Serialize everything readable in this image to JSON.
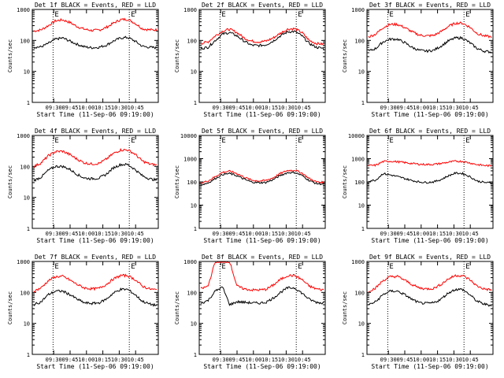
{
  "chart_data": [
    {
      "type": "line",
      "title": "Det 1f BLACK = Events, RED = LLD",
      "xlabel": "Start Time (11-Sep-06 09:19:00)",
      "ylabel": "Counts/sec",
      "ylim": [
        1,
        1000
      ],
      "yscale": "log",
      "xticks": [
        "09:30",
        "09:45",
        "10:00",
        "10:15",
        "10:30",
        "10:45"
      ],
      "yticks": [
        "1",
        "10",
        "100",
        "1000"
      ],
      "markers": [
        "E",
        "E"
      ],
      "series": [
        {
          "color": "#ff0000",
          "values": [
            200,
            220,
            300,
            430,
            460,
            380,
            280,
            230,
            210,
            215,
            260,
            360,
            470,
            480,
            360,
            240,
            220,
            220
          ]
        },
        {
          "color": "#000000",
          "values": [
            60,
            62,
            80,
            110,
            120,
            95,
            75,
            62,
            58,
            60,
            70,
            95,
            120,
            125,
            95,
            65,
            60,
            58
          ]
        }
      ]
    },
    {
      "type": "line",
      "title": "Det 2f BLACK = Events, RED = LLD",
      "xlabel": "Start Time (11-Sep-06 09:19:00)",
      "ylabel": "Counts/sec",
      "ylim": [
        1,
        1000
      ],
      "yscale": "log",
      "xticks": [
        "09:30",
        "09:45",
        "10:00",
        "10:15",
        "10:30",
        "10:45"
      ],
      "yticks": [
        "1",
        "10",
        "100",
        "1000"
      ],
      "markers": [
        "E",
        "E"
      ],
      "series": [
        {
          "color": "#ff0000",
          "values": [
            80,
            90,
            140,
            200,
            230,
            180,
            120,
            95,
            90,
            95,
            120,
            170,
            230,
            240,
            180,
            100,
            80,
            75
          ]
        },
        {
          "color": "#000000",
          "values": [
            55,
            60,
            100,
            160,
            180,
            140,
            95,
            70,
            68,
            72,
            95,
            140,
            190,
            195,
            140,
            80,
            60,
            55
          ]
        }
      ]
    },
    {
      "type": "line",
      "title": "Det 3f BLACK = Events, RED = LLD",
      "xlabel": "Start Time (11-Sep-06 09:19:00)",
      "ylabel": "Counts/sec",
      "ylim": [
        1,
        1000
      ],
      "yscale": "log",
      "xticks": [
        "09:30",
        "09:45",
        "10:00",
        "10:15",
        "10:30",
        "10:45"
      ],
      "yticks": [
        "1",
        "10",
        "100",
        "1000"
      ],
      "markers": [
        "E",
        "E"
      ],
      "series": [
        {
          "color": "#ff0000",
          "values": [
            130,
            160,
            260,
            330,
            330,
            260,
            190,
            150,
            140,
            145,
            190,
            280,
            360,
            360,
            270,
            170,
            140,
            130
          ]
        },
        {
          "color": "#000000",
          "values": [
            45,
            55,
            90,
            110,
            110,
            85,
            60,
            48,
            45,
            48,
            65,
            95,
            120,
            120,
            85,
            55,
            45,
            42
          ]
        }
      ]
    },
    {
      "type": "line",
      "title": "Det 4f BLACK = Events, RED = LLD",
      "xlabel": "Start Time (11-Sep-06 09:19:00)",
      "ylabel": "Counts/sec",
      "ylim": [
        1,
        1000
      ],
      "yscale": "log",
      "xticks": [
        "09:30",
        "09:45",
        "10:00",
        "10:15",
        "10:30",
        "10:45"
      ],
      "yticks": [
        "1",
        "10",
        "100",
        "1000"
      ],
      "markers": [
        "E",
        "E"
      ],
      "series": [
        {
          "color": "#ff0000",
          "values": [
            100,
            130,
            220,
            300,
            310,
            240,
            170,
            130,
            120,
            125,
            170,
            260,
            340,
            340,
            250,
            150,
            120,
            110
          ]
        },
        {
          "color": "#000000",
          "values": [
            35,
            45,
            75,
            100,
            100,
            80,
            55,
            42,
            40,
            42,
            55,
            90,
            115,
            115,
            80,
            50,
            40,
            36
          ]
        }
      ]
    },
    {
      "type": "line",
      "title": "Det 5f BLACK = Events, RED = LLD",
      "xlabel": "Start Time (11-Sep-06 09:19:00)",
      "ylabel": "Counts/sec",
      "ylim": [
        1,
        10000
      ],
      "yscale": "log",
      "xticks": [
        "09:30",
        "09:45",
        "10:00",
        "10:15",
        "10:30",
        "10:45"
      ],
      "yticks": [
        "1",
        "10",
        "100",
        "1000",
        "10000"
      ],
      "markers": [
        "E",
        "E"
      ],
      "series": [
        {
          "color": "#ff0000",
          "values": [
            90,
            110,
            170,
            260,
            290,
            230,
            160,
            120,
            110,
            115,
            150,
            230,
            310,
            320,
            240,
            140,
            100,
            95
          ]
        },
        {
          "color": "#000000",
          "values": [
            75,
            90,
            140,
            210,
            230,
            185,
            130,
            100,
            92,
            95,
            125,
            190,
            250,
            255,
            190,
            115,
            85,
            80
          ]
        }
      ]
    },
    {
      "type": "line",
      "title": "Det 6f BLACK = Events, RED = LLD",
      "xlabel": "Start Time (11-Sep-06 09:19:00)",
      "ylabel": "Counts/sec",
      "ylim": [
        1,
        10000
      ],
      "yscale": "log",
      "xticks": [
        "09:30",
        "09:45",
        "10:00",
        "10:15",
        "10:30",
        "10:45"
      ],
      "yticks": [
        "1",
        "10",
        "100",
        "1000",
        "10000"
      ],
      "markers": [
        "E",
        "E"
      ],
      "series": [
        {
          "color": "#ff0000",
          "values": [
            500,
            520,
            750,
            780,
            740,
            680,
            620,
            580,
            560,
            570,
            620,
            700,
            780,
            760,
            660,
            560,
            510,
            490
          ]
        },
        {
          "color": "#000000",
          "values": [
            110,
            120,
            230,
            200,
            170,
            140,
            115,
            100,
            95,
            100,
            125,
            180,
            240,
            230,
            170,
            110,
            95,
            90
          ]
        }
      ]
    },
    {
      "type": "line",
      "title": "Det 7f BLACK = Events, RED = LLD",
      "xlabel": "Start Time (11-Sep-06 09:19:00)",
      "ylabel": "Counts/sec",
      "ylim": [
        1,
        1000
      ],
      "yscale": "log",
      "xticks": [
        "09:30",
        "09:45",
        "10:00",
        "10:15",
        "10:30",
        "10:45"
      ],
      "yticks": [
        "1",
        "10",
        "100",
        "1000"
      ],
      "markers": [
        "E",
        "E"
      ],
      "series": [
        {
          "color": "#ff0000",
          "values": [
            110,
            140,
            240,
            320,
            330,
            250,
            180,
            140,
            130,
            135,
            180,
            270,
            350,
            350,
            260,
            160,
            130,
            120
          ]
        },
        {
          "color": "#000000",
          "values": [
            40,
            50,
            85,
            110,
            110,
            85,
            60,
            46,
            44,
            46,
            60,
            95,
            125,
            125,
            85,
            52,
            42,
            38
          ]
        }
      ]
    },
    {
      "type": "line",
      "title": "Det 8f BLACK = Events, RED = LLD",
      "xlabel": "Start Time (11-Sep-06 09:19:00)",
      "ylabel": "Counts/sec",
      "ylim": [
        1,
        1000
      ],
      "yscale": "log",
      "xticks": [
        "09:30",
        "09:45",
        "10:00",
        "10:15",
        "10:30",
        "10:45"
      ],
      "yticks": [
        "1",
        "10",
        "100",
        "1000"
      ],
      "markers": [
        "E",
        "E"
      ],
      "series": [
        {
          "color": "#ff0000",
          "values": [
            130,
            160,
            1000,
            1000,
            1000,
            160,
            130,
            120,
            120,
            125,
            170,
            260,
            350,
            350,
            260,
            160,
            130,
            120
          ]
        },
        {
          "color": "#000000",
          "values": [
            45,
            55,
            110,
            150,
            40,
            50,
            48,
            46,
            45,
            48,
            65,
            100,
            140,
            140,
            95,
            60,
            48,
            45
          ]
        }
      ]
    },
    {
      "type": "line",
      "title": "Det 9f BLACK = Events, RED = LLD",
      "xlabel": "Start Time (11-Sep-06 09:19:00)",
      "ylabel": "Counts/sec",
      "ylim": [
        1,
        1000
      ],
      "yscale": "log",
      "xticks": [
        "09:30",
        "09:45",
        "10:00",
        "10:15",
        "10:30",
        "10:45"
      ],
      "yticks": [
        "1",
        "10",
        "100",
        "1000"
      ],
      "markers": [
        "E",
        "E"
      ],
      "series": [
        {
          "color": "#ff0000",
          "values": [
            110,
            140,
            240,
            320,
            330,
            250,
            180,
            140,
            130,
            135,
            180,
            270,
            350,
            350,
            260,
            160,
            130,
            120
          ]
        },
        {
          "color": "#000000",
          "values": [
            40,
            50,
            85,
            110,
            110,
            85,
            60,
            46,
            44,
            46,
            60,
            95,
            125,
            125,
            85,
            52,
            42,
            38
          ]
        }
      ]
    }
  ]
}
